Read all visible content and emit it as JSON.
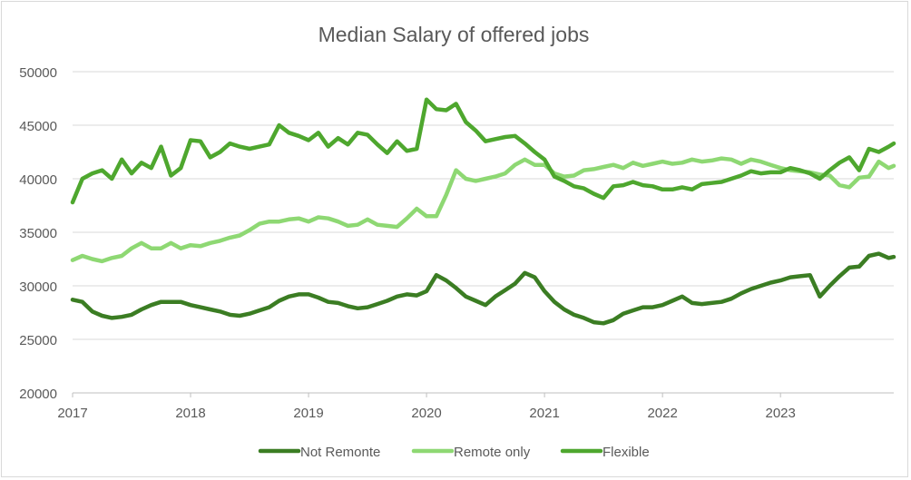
{
  "chart_data": {
    "type": "line",
    "title": "Median Salary of offered jobs",
    "xlabel": "",
    "ylabel": "",
    "x_start": 2017,
    "x_step_months": 1,
    "xlim": [
      2017,
      2023.96
    ],
    "ylim": [
      20000,
      50000
    ],
    "y_ticks": [
      "20000",
      "25000",
      "30000",
      "35000",
      "40000",
      "45000",
      "50000"
    ],
    "x_ticks": [
      "2017",
      "2018",
      "2019",
      "2020",
      "2021",
      "2022",
      "2023"
    ],
    "grid": true,
    "legend_position": "bottom",
    "series": [
      {
        "name": "Not Remonte",
        "color": "#3b7d23",
        "values": [
          28700,
          28500,
          27600,
          27200,
          27000,
          27100,
          27300,
          27800,
          28200,
          28500,
          28500,
          28500,
          28200,
          28000,
          27800,
          27600,
          27300,
          27200,
          27400,
          27700,
          28000,
          28600,
          29000,
          29200,
          29200,
          28900,
          28500,
          28400,
          28100,
          27900,
          28000,
          28300,
          28600,
          29000,
          29200,
          29100,
          29500,
          31000,
          30500,
          29800,
          29000,
          28600,
          28200,
          29000,
          29600,
          30200,
          31200,
          30800,
          29500,
          28500,
          27800,
          27300,
          27000,
          26600,
          26500,
          26800,
          27400,
          27700,
          28000,
          28000,
          28200,
          28600,
          29000,
          28400,
          28300,
          28400,
          28500,
          28800,
          29300,
          29700,
          30000,
          30300,
          30500,
          30800,
          30900,
          31000,
          29000,
          30000,
          30900,
          31700,
          31800,
          32800,
          33000,
          32600,
          32700
        ]
      },
      {
        "name": "Remote only",
        "color": "#8ed873",
        "values": [
          32400,
          32800,
          32500,
          32300,
          32600,
          32800,
          33500,
          34000,
          33500,
          33500,
          34000,
          33500,
          33800,
          33700,
          34000,
          34200,
          34500,
          34700,
          35200,
          35800,
          36000,
          36000,
          36200,
          36300,
          36000,
          36400,
          36300,
          36000,
          35600,
          35700,
          36200,
          35700,
          35600,
          35500,
          36300,
          37200,
          36500,
          36500,
          38500,
          40800,
          40000,
          39800,
          40000,
          40200,
          40500,
          41300,
          41800,
          41300,
          41300,
          40500,
          40200,
          40300,
          40800,
          40900,
          41100,
          41300,
          41000,
          41500,
          41200,
          41400,
          41600,
          41400,
          41500,
          41800,
          41600,
          41700,
          41900,
          41800,
          41400,
          41800,
          41600,
          41300,
          41000,
          40800,
          40700,
          40600,
          40400,
          40300,
          39400,
          39200,
          40100,
          40200,
          41600,
          41000,
          41200
        ]
      },
      {
        "name": "Flexible",
        "color": "#4ea72e",
        "values": [
          37800,
          40000,
          40500,
          40800,
          40000,
          41800,
          40500,
          41500,
          41000,
          43000,
          40300,
          41000,
          43600,
          43500,
          42000,
          42500,
          43300,
          43000,
          42800,
          43000,
          43200,
          45000,
          44300,
          44000,
          43600,
          44300,
          43000,
          43800,
          43200,
          44300,
          44100,
          43200,
          42400,
          43500,
          42600,
          42800,
          47400,
          46500,
          46400,
          47000,
          45300,
          44500,
          43500,
          43700,
          43900,
          44000,
          43300,
          42500,
          41800,
          40200,
          39800,
          39300,
          39100,
          38600,
          38200,
          39300,
          39400,
          39700,
          39400,
          39300,
          39000,
          39000,
          39200,
          39000,
          39500,
          39600,
          39700,
          40000,
          40300,
          40700,
          40500,
          40600,
          40600,
          41000,
          40800,
          40500,
          40000,
          40800,
          41500,
          42000,
          40800,
          42800,
          42500,
          43000,
          43300
        ]
      }
    ]
  }
}
